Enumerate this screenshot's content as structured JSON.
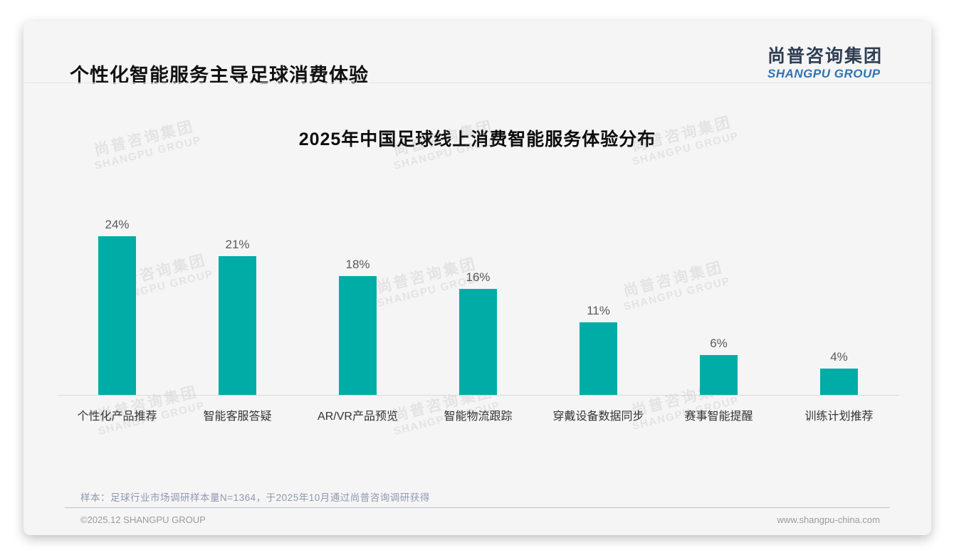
{
  "header": {
    "title": "个性化智能服务主导足球消费体验",
    "logo": {
      "name_zh": "尚普咨询集团",
      "name_en": "SHANGPU GROUP"
    }
  },
  "watermark": {
    "line1": "尚普咨询集团",
    "line2": "SHANGPU GROUP"
  },
  "chart_data": {
    "type": "bar",
    "title": "2025年中国足球线上消费智能服务体验分布",
    "categories": [
      "个性化产品推荐",
      "智能客服答疑",
      "AR/VR产品预览",
      "智能物流跟踪",
      "穿戴设备数据同步",
      "赛事智能提醒",
      "训练计划推荐"
    ],
    "values": [
      24,
      21,
      18,
      16,
      11,
      6,
      4
    ],
    "value_labels": [
      "24%",
      "21%",
      "18%",
      "16%",
      "11%",
      "6%",
      "4%"
    ],
    "unit": "%",
    "ylim": [
      0,
      26
    ],
    "bar_color": "#00ADA6",
    "baseline_color": "#d9d9d9",
    "grid": "off",
    "legend": "none",
    "y_axis": "hidden"
  },
  "footnote": "样本：足球行业市场调研样本量N=1364，于2025年10月通过尚普咨询调研获得",
  "footer": {
    "copyright": "©2025.12 SHANGPU GROUP",
    "website": "www.shangpu-china.com"
  },
  "colors": {
    "accent_teal": "#00ADA6",
    "logo_zh": "#2F3E52",
    "logo_en": "#2E74B5",
    "card_bg": "#F5F5F6",
    "footnote_text": "#8E99AD",
    "footer_text": "#9B9B9B"
  }
}
